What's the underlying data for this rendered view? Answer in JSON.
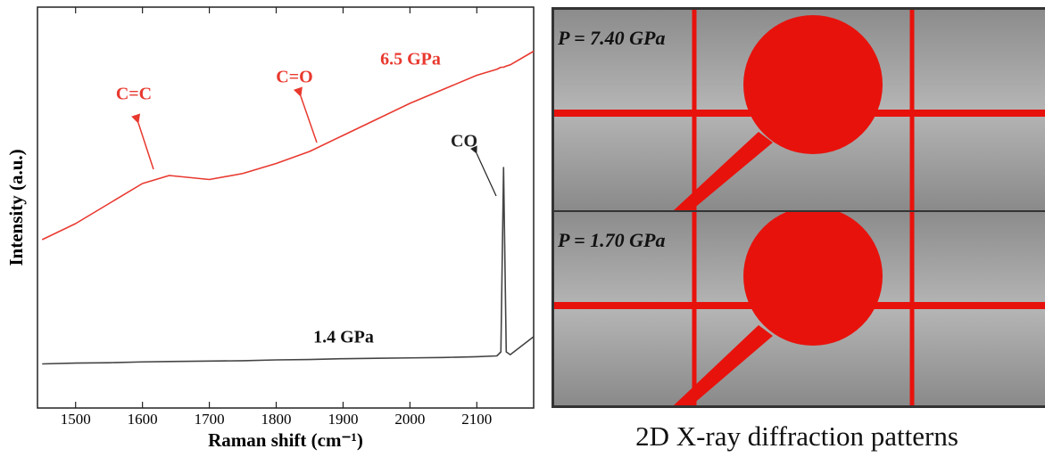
{
  "chart_data": {
    "type": "line",
    "x_label": "Raman shift (cm⁻¹)",
    "y_label": "Intensity (a.u.)",
    "x": [
      1450,
      1500,
      1550,
      1600,
      1640,
      1700,
      1750,
      1800,
      1850,
      1900,
      1950,
      2000,
      2050,
      2100,
      2130,
      2136,
      2140,
      2144,
      2150,
      2185
    ],
    "series": [
      {
        "name": "6.5 GPa",
        "color": "#e8392f",
        "values": [
          42,
          46,
          51,
          56,
          58,
          57,
          58.5,
          61,
          64,
          68,
          72,
          76,
          79.5,
          83,
          84.5,
          85,
          85,
          85.3,
          85.6,
          89
        ]
      },
      {
        "name": "1.4 GPa",
        "color": "#444444",
        "values": [
          11,
          11.2,
          11.3,
          11.5,
          11.6,
          11.7,
          11.8,
          12,
          12.1,
          12.3,
          12.4,
          12.5,
          12.6,
          12.8,
          13,
          14,
          60,
          14,
          13.3,
          17.8
        ]
      }
    ],
    "annotations": [
      "C=C",
      "C=O",
      "CO"
    ],
    "xlim": [
      1443,
      2185
    ],
    "ylim": [
      0,
      100
    ],
    "xticks": [
      1500,
      1600,
      1700,
      1800,
      1900,
      2000,
      2100
    ]
  },
  "panel": {
    "caption": "2D X-ray diffraction patterns",
    "patterns": [
      {
        "label": "P = 7.40 GPa"
      },
      {
        "label": "P = 1.70 GPa"
      }
    ]
  }
}
